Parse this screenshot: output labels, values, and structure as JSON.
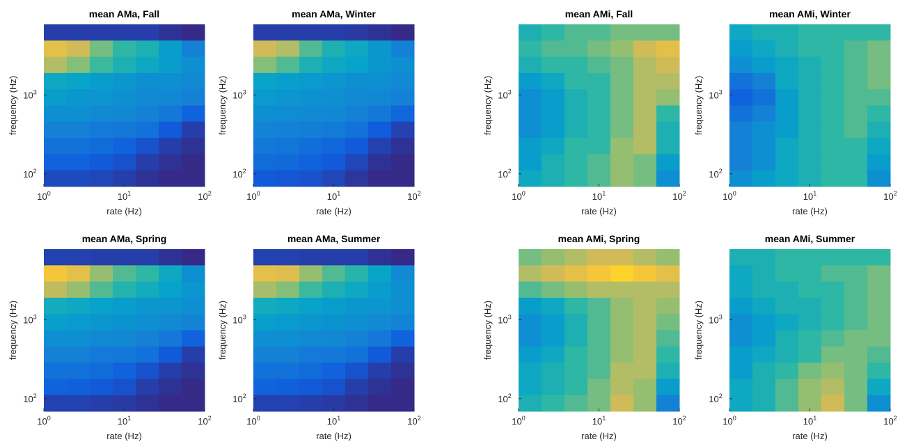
{
  "colormap": [
    "#352a87",
    "#0f5cdd",
    "#1481d6",
    "#06a4ca",
    "#2eb7a4",
    "#87bf77",
    "#d1bb59",
    "#fec832",
    "#f9fb0e"
  ],
  "clim": [
    0,
    1
  ],
  "chart_data": [
    {
      "type": "heatmap",
      "title": "mean AMa, Fall",
      "xlabel": "rate (Hz)",
      "ylabel": "frequency (Hz)",
      "xlim": [
        1,
        100
      ],
      "ylim": [
        69,
        7900
      ],
      "xticks": [
        {
          "value": 1,
          "label": "10",
          "exponent": "0"
        },
        {
          "value": 10,
          "label": "10",
          "exponent": "1"
        },
        {
          "value": 100,
          "label": "10",
          "exponent": "2"
        }
      ],
      "yticks": [
        {
          "value": 100,
          "label": "10",
          "exponent": "2"
        },
        {
          "value": 1000,
          "label": "10",
          "exponent": "3"
        }
      ],
      "z": [
        [
          0.05,
          0.05,
          0.05,
          0.05,
          0.05,
          0.02,
          0
        ],
        [
          0.8,
          0.75,
          0.6,
          0.5,
          0.45,
          0.35,
          0.25
        ],
        [
          0.7,
          0.62,
          0.52,
          0.45,
          0.4,
          0.35,
          0.3
        ],
        [
          0.4,
          0.38,
          0.35,
          0.33,
          0.3,
          0.3,
          0.28
        ],
        [
          0.35,
          0.33,
          0.32,
          0.3,
          0.28,
          0.27,
          0.25
        ],
        [
          0.3,
          0.3,
          0.28,
          0.27,
          0.25,
          0.22,
          0.15
        ],
        [
          0.25,
          0.25,
          0.23,
          0.22,
          0.2,
          0.12,
          0.05
        ],
        [
          0.2,
          0.2,
          0.18,
          0.15,
          0.1,
          0.05,
          0.02
        ],
        [
          0.15,
          0.15,
          0.12,
          0.1,
          0.05,
          0.02,
          0
        ],
        [
          0.08,
          0.08,
          0.07,
          0.05,
          0.02,
          0,
          0
        ]
      ]
    },
    {
      "type": "heatmap",
      "title": "mean AMa, Winter",
      "xlabel": "rate (Hz)",
      "ylabel": "frequency (Hz)",
      "xlim": [
        1,
        100
      ],
      "ylim": [
        69,
        7900
      ],
      "xticks": [
        {
          "value": 1,
          "label": "10",
          "exponent": "0"
        },
        {
          "value": 10,
          "label": "10",
          "exponent": "1"
        },
        {
          "value": 100,
          "label": "10",
          "exponent": "2"
        }
      ],
      "yticks": [
        {
          "value": 100,
          "label": "10",
          "exponent": "2"
        },
        {
          "value": 1000,
          "label": "10",
          "exponent": "3"
        }
      ],
      "z": [
        [
          0.05,
          0.05,
          0.05,
          0.05,
          0.04,
          0.02,
          0
        ],
        [
          0.75,
          0.7,
          0.55,
          0.45,
          0.4,
          0.33,
          0.25
        ],
        [
          0.62,
          0.55,
          0.45,
          0.4,
          0.37,
          0.33,
          0.3
        ],
        [
          0.38,
          0.36,
          0.34,
          0.32,
          0.3,
          0.3,
          0.28
        ],
        [
          0.34,
          0.32,
          0.31,
          0.3,
          0.28,
          0.27,
          0.25
        ],
        [
          0.3,
          0.29,
          0.28,
          0.27,
          0.25,
          0.22,
          0.16
        ],
        [
          0.26,
          0.25,
          0.24,
          0.23,
          0.2,
          0.13,
          0.06
        ],
        [
          0.22,
          0.21,
          0.19,
          0.16,
          0.12,
          0.06,
          0.02
        ],
        [
          0.18,
          0.17,
          0.15,
          0.12,
          0.07,
          0.02,
          0
        ],
        [
          0.12,
          0.11,
          0.1,
          0.07,
          0.03,
          0,
          0
        ]
      ]
    },
    {
      "type": "heatmap",
      "title": "mean AMi, Fall",
      "xlabel": "rate (Hz)",
      "ylabel": "frequency (Hz)",
      "xlim": [
        1,
        100
      ],
      "ylim": [
        69,
        7900
      ],
      "xticks": [
        {
          "value": 1,
          "label": "10",
          "exponent": "0"
        },
        {
          "value": 10,
          "label": "10",
          "exponent": "1"
        },
        {
          "value": 100,
          "label": "10",
          "exponent": "2"
        }
      ],
      "yticks": [
        {
          "value": 100,
          "label": "10",
          "exponent": "2"
        },
        {
          "value": 1000,
          "label": "10",
          "exponent": "3"
        }
      ],
      "z": [
        [
          0.45,
          0.5,
          0.55,
          0.55,
          0.6,
          0.6,
          0.6
        ],
        [
          0.5,
          0.55,
          0.55,
          0.6,
          0.65,
          0.75,
          0.8
        ],
        [
          0.45,
          0.5,
          0.5,
          0.55,
          0.6,
          0.7,
          0.75
        ],
        [
          0.35,
          0.4,
          0.5,
          0.5,
          0.6,
          0.7,
          0.7
        ],
        [
          0.3,
          0.35,
          0.45,
          0.5,
          0.6,
          0.7,
          0.65
        ],
        [
          0.3,
          0.35,
          0.45,
          0.5,
          0.6,
          0.7,
          0.5
        ],
        [
          0.3,
          0.35,
          0.45,
          0.5,
          0.6,
          0.7,
          0.45
        ],
        [
          0.35,
          0.4,
          0.5,
          0.5,
          0.65,
          0.7,
          0.45
        ],
        [
          0.35,
          0.45,
          0.5,
          0.55,
          0.65,
          0.6,
          0.35
        ],
        [
          0.4,
          0.45,
          0.5,
          0.55,
          0.65,
          0.6,
          0.3
        ]
      ]
    },
    {
      "type": "heatmap",
      "title": "mean AMi, Winter",
      "xlabel": "rate (Hz)",
      "ylabel": "frequency (Hz)",
      "xlim": [
        1,
        100
      ],
      "ylim": [
        69,
        7900
      ],
      "xticks": [
        {
          "value": 1,
          "label": "10",
          "exponent": "0"
        },
        {
          "value": 10,
          "label": "10",
          "exponent": "1"
        },
        {
          "value": 100,
          "label": "10",
          "exponent": "2"
        }
      ],
      "yticks": [
        {
          "value": 100,
          "label": "10",
          "exponent": "2"
        },
        {
          "value": 1000,
          "label": "10",
          "exponent": "3"
        }
      ],
      "z": [
        [
          0.4,
          0.45,
          0.45,
          0.5,
          0.5,
          0.5,
          0.5
        ],
        [
          0.35,
          0.4,
          0.45,
          0.5,
          0.5,
          0.55,
          0.6
        ],
        [
          0.3,
          0.35,
          0.4,
          0.45,
          0.5,
          0.55,
          0.6
        ],
        [
          0.2,
          0.25,
          0.4,
          0.45,
          0.5,
          0.55,
          0.6
        ],
        [
          0.15,
          0.2,
          0.35,
          0.45,
          0.5,
          0.55,
          0.55
        ],
        [
          0.2,
          0.25,
          0.35,
          0.45,
          0.5,
          0.55,
          0.5
        ],
        [
          0.25,
          0.3,
          0.35,
          0.45,
          0.5,
          0.55,
          0.45
        ],
        [
          0.25,
          0.3,
          0.4,
          0.45,
          0.5,
          0.5,
          0.4
        ],
        [
          0.25,
          0.3,
          0.4,
          0.45,
          0.5,
          0.5,
          0.35
        ],
        [
          0.3,
          0.35,
          0.4,
          0.45,
          0.5,
          0.5,
          0.3
        ]
      ]
    },
    {
      "type": "heatmap",
      "title": "mean AMa, Spring",
      "xlabel": "rate (Hz)",
      "ylabel": "frequency (Hz)",
      "xlim": [
        1,
        100
      ],
      "ylim": [
        69,
        7900
      ],
      "xticks": [
        {
          "value": 1,
          "label": "10",
          "exponent": "0"
        },
        {
          "value": 10,
          "label": "10",
          "exponent": "1"
        },
        {
          "value": 100,
          "label": "10",
          "exponent": "2"
        }
      ],
      "yticks": [
        {
          "value": 100,
          "label": "10",
          "exponent": "2"
        },
        {
          "value": 1000,
          "label": "10",
          "exponent": "3"
        }
      ],
      "z": [
        [
          0.06,
          0.06,
          0.05,
          0.05,
          0.05,
          0.02,
          0
        ],
        [
          0.85,
          0.8,
          0.65,
          0.55,
          0.5,
          0.4,
          0.3
        ],
        [
          0.72,
          0.65,
          0.55,
          0.47,
          0.42,
          0.37,
          0.32
        ],
        [
          0.42,
          0.4,
          0.37,
          0.35,
          0.33,
          0.32,
          0.3
        ],
        [
          0.36,
          0.34,
          0.33,
          0.31,
          0.3,
          0.28,
          0.26
        ],
        [
          0.3,
          0.3,
          0.28,
          0.27,
          0.25,
          0.22,
          0.15
        ],
        [
          0.25,
          0.25,
          0.23,
          0.22,
          0.2,
          0.12,
          0.05
        ],
        [
          0.2,
          0.2,
          0.18,
          0.15,
          0.1,
          0.05,
          0.02
        ],
        [
          0.15,
          0.14,
          0.12,
          0.1,
          0.05,
          0.02,
          0
        ],
        [
          0.06,
          0.06,
          0.05,
          0.04,
          0.02,
          0,
          0
        ]
      ]
    },
    {
      "type": "heatmap",
      "title": "mean AMa, Summer",
      "xlabel": "rate (Hz)",
      "ylabel": "frequency (Hz)",
      "xlim": [
        1,
        100
      ],
      "ylim": [
        69,
        7900
      ],
      "xticks": [
        {
          "value": 1,
          "label": "10",
          "exponent": "0"
        },
        {
          "value": 10,
          "label": "10",
          "exponent": "1"
        },
        {
          "value": 100,
          "label": "10",
          "exponent": "2"
        }
      ],
      "yticks": [
        {
          "value": 100,
          "label": "10",
          "exponent": "2"
        },
        {
          "value": 1000,
          "label": "10",
          "exponent": "3"
        }
      ],
      "z": [
        [
          0.06,
          0.06,
          0.05,
          0.05,
          0.05,
          0.02,
          0
        ],
        [
          0.8,
          0.78,
          0.65,
          0.55,
          0.48,
          0.38,
          0.28
        ],
        [
          0.68,
          0.62,
          0.52,
          0.45,
          0.4,
          0.35,
          0.3
        ],
        [
          0.42,
          0.4,
          0.37,
          0.35,
          0.33,
          0.32,
          0.3
        ],
        [
          0.36,
          0.34,
          0.33,
          0.31,
          0.3,
          0.28,
          0.26
        ],
        [
          0.3,
          0.3,
          0.28,
          0.27,
          0.25,
          0.22,
          0.15
        ],
        [
          0.25,
          0.25,
          0.23,
          0.22,
          0.2,
          0.12,
          0.05
        ],
        [
          0.2,
          0.2,
          0.18,
          0.15,
          0.1,
          0.05,
          0.02
        ],
        [
          0.15,
          0.14,
          0.12,
          0.1,
          0.05,
          0.02,
          0
        ],
        [
          0.06,
          0.06,
          0.05,
          0.04,
          0.02,
          0,
          0
        ]
      ]
    },
    {
      "type": "heatmap",
      "title": "mean AMi, Spring",
      "xlabel": "rate (Hz)",
      "ylabel": "frequency (Hz)",
      "xlim": [
        1,
        100
      ],
      "ylim": [
        69,
        7900
      ],
      "xticks": [
        {
          "value": 1,
          "label": "10",
          "exponent": "0"
        },
        {
          "value": 10,
          "label": "10",
          "exponent": "1"
        },
        {
          "value": 100,
          "label": "10",
          "exponent": "2"
        }
      ],
      "yticks": [
        {
          "value": 100,
          "label": "10",
          "exponent": "2"
        },
        {
          "value": 1000,
          "label": "10",
          "exponent": "3"
        }
      ],
      "z": [
        [
          0.6,
          0.65,
          0.7,
          0.75,
          0.75,
          0.7,
          0.65
        ],
        [
          0.7,
          0.75,
          0.8,
          0.85,
          0.9,
          0.85,
          0.8
        ],
        [
          0.55,
          0.6,
          0.65,
          0.7,
          0.7,
          0.7,
          0.7
        ],
        [
          0.35,
          0.4,
          0.5,
          0.55,
          0.65,
          0.7,
          0.65
        ],
        [
          0.3,
          0.35,
          0.45,
          0.55,
          0.65,
          0.7,
          0.6
        ],
        [
          0.3,
          0.35,
          0.45,
          0.55,
          0.65,
          0.7,
          0.55
        ],
        [
          0.35,
          0.4,
          0.5,
          0.55,
          0.65,
          0.7,
          0.5
        ],
        [
          0.4,
          0.45,
          0.5,
          0.55,
          0.7,
          0.7,
          0.45
        ],
        [
          0.4,
          0.45,
          0.5,
          0.6,
          0.7,
          0.65,
          0.35
        ],
        [
          0.45,
          0.5,
          0.55,
          0.6,
          0.75,
          0.65,
          0.25
        ]
      ]
    },
    {
      "type": "heatmap",
      "title": "mean AMi, Summer",
      "xlabel": "rate (Hz)",
      "ylabel": "frequency (Hz)",
      "xlim": [
        1,
        100
      ],
      "ylim": [
        69,
        7900
      ],
      "xticks": [
        {
          "value": 1,
          "label": "10",
          "exponent": "0"
        },
        {
          "value": 10,
          "label": "10",
          "exponent": "1"
        },
        {
          "value": 100,
          "label": "10",
          "exponent": "2"
        }
      ],
      "yticks": [
        {
          "value": 100,
          "label": "10",
          "exponent": "2"
        },
        {
          "value": 1000,
          "label": "10",
          "exponent": "3"
        }
      ],
      "z": [
        [
          0.45,
          0.45,
          0.5,
          0.5,
          0.5,
          0.5,
          0.5
        ],
        [
          0.4,
          0.45,
          0.5,
          0.5,
          0.55,
          0.55,
          0.6
        ],
        [
          0.4,
          0.45,
          0.45,
          0.5,
          0.5,
          0.55,
          0.6
        ],
        [
          0.35,
          0.4,
          0.45,
          0.45,
          0.5,
          0.55,
          0.6
        ],
        [
          0.3,
          0.35,
          0.4,
          0.45,
          0.5,
          0.55,
          0.6
        ],
        [
          0.3,
          0.35,
          0.45,
          0.5,
          0.55,
          0.6,
          0.6
        ],
        [
          0.35,
          0.4,
          0.45,
          0.5,
          0.6,
          0.6,
          0.55
        ],
        [
          0.35,
          0.45,
          0.5,
          0.6,
          0.65,
          0.6,
          0.5
        ],
        [
          0.4,
          0.45,
          0.55,
          0.65,
          0.7,
          0.6,
          0.4
        ],
        [
          0.4,
          0.45,
          0.55,
          0.65,
          0.75,
          0.6,
          0.3
        ]
      ]
    }
  ]
}
